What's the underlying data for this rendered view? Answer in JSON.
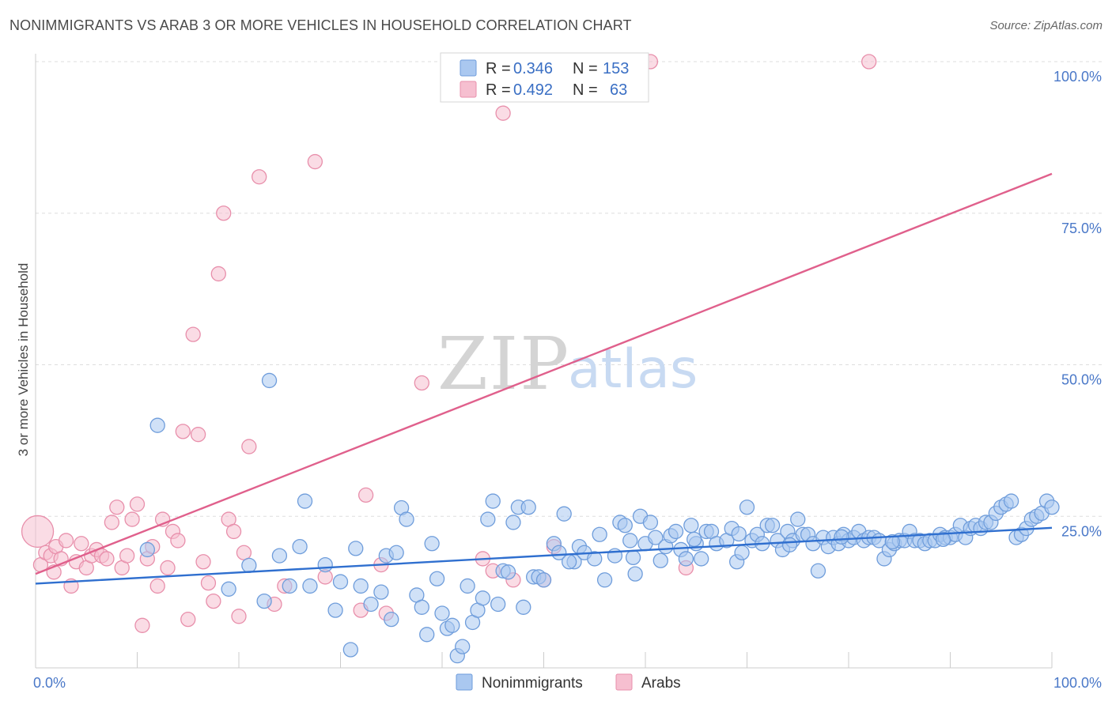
{
  "title": "NONIMMIGRANTS VS ARAB 3 OR MORE VEHICLES IN HOUSEHOLD CORRELATION CHART",
  "source": "Source: ZipAtlas.com",
  "watermark": {
    "zip": "ZIP",
    "atlas": "atlas"
  },
  "colors": {
    "blue_fill": "#aac8f0",
    "blue_stroke": "#6f9ddb",
    "blue_line": "#2f6fcf",
    "pink_fill": "#f6bfd0",
    "pink_stroke": "#e88fab",
    "pink_line": "#e0608c",
    "grid": "#dddddd",
    "tick_label": "#4a78c8"
  },
  "legend": {
    "rows": [
      {
        "r_label": "R =",
        "r_value": "0.346",
        "n_label": "N =",
        "n_value": "153"
      },
      {
        "r_label": "R =",
        "r_value": "0.492",
        "n_label": "N =",
        "n_value": "63"
      }
    ]
  },
  "chart_data": {
    "type": "scatter",
    "title": "NONIMMIGRANTS VS ARAB 3 OR MORE VEHICLES IN HOUSEHOLD CORRELATION CHART",
    "xlabel": "",
    "ylabel": "3 or more Vehicles in Household",
    "xlim": [
      0,
      100
    ],
    "ylim": [
      0,
      100
    ],
    "x_tick_labels": [
      "0.0%",
      "100.0%"
    ],
    "y_tick_labels": [
      {
        "value": 25,
        "label": "25.0%"
      },
      {
        "value": 50,
        "label": "50.0%"
      },
      {
        "value": 75,
        "label": "75.0%"
      },
      {
        "value": 100,
        "label": "100.0%"
      }
    ],
    "grid": true,
    "legend_position": "bottom-center",
    "series": [
      {
        "name": "Nonimmigrants",
        "color": "#aac8f0",
        "trend": {
          "x": [
            0,
            100
          ],
          "y": [
            13.9,
            23.1
          ]
        },
        "points": [
          [
            12,
            40
          ],
          [
            23,
            47.4
          ],
          [
            11,
            19.5
          ],
          [
            19,
            13
          ],
          [
            21,
            16.9
          ],
          [
            22.5,
            11
          ],
          [
            24,
            18.5
          ],
          [
            25,
            13.5
          ],
          [
            26,
            20
          ],
          [
            26.5,
            27.5
          ],
          [
            27,
            13.5
          ],
          [
            28.5,
            17
          ],
          [
            29.5,
            9.5
          ],
          [
            30,
            14.2
          ],
          [
            31,
            3
          ],
          [
            31.5,
            19.7
          ],
          [
            32,
            13.5
          ],
          [
            33,
            10.5
          ],
          [
            34,
            12.5
          ],
          [
            34.5,
            18.5
          ],
          [
            35,
            8
          ],
          [
            35.5,
            19
          ],
          [
            36,
            26.4
          ],
          [
            36.5,
            24.5
          ],
          [
            37.5,
            12
          ],
          [
            38,
            10
          ],
          [
            38.5,
            5.5
          ],
          [
            39,
            20.5
          ],
          [
            39.5,
            14.7
          ],
          [
            40,
            9
          ],
          [
            40.5,
            6.5
          ],
          [
            41,
            7
          ],
          [
            41.5,
            2
          ],
          [
            42,
            3.5
          ],
          [
            42.5,
            13.5
          ],
          [
            43,
            7.5
          ],
          [
            43.5,
            9.5
          ],
          [
            44,
            11.5
          ],
          [
            44.5,
            24.5
          ],
          [
            45,
            27.5
          ],
          [
            45.5,
            10.5
          ],
          [
            46,
            16
          ],
          [
            46.5,
            15.8
          ],
          [
            47,
            24
          ],
          [
            47.5,
            26.5
          ],
          [
            48,
            10
          ],
          [
            48.5,
            26.5
          ],
          [
            49,
            15
          ],
          [
            49.5,
            15
          ],
          [
            50,
            14.5
          ],
          [
            51,
            20.5
          ],
          [
            51.5,
            19
          ],
          [
            52,
            25.4
          ],
          [
            53,
            17.5
          ],
          [
            53.5,
            20
          ],
          [
            54,
            19
          ],
          [
            55,
            18
          ],
          [
            55.5,
            22
          ],
          [
            56,
            14.5
          ],
          [
            57,
            18.5
          ],
          [
            57.5,
            24
          ],
          [
            58,
            23.5
          ],
          [
            58.5,
            21
          ],
          [
            59,
            15.5
          ],
          [
            59.5,
            25
          ],
          [
            60,
            20.5
          ],
          [
            60.5,
            24
          ],
          [
            61,
            21.5
          ],
          [
            61.5,
            17.7
          ],
          [
            62,
            20
          ],
          [
            62.5,
            21.8
          ],
          [
            63,
            22.5
          ],
          [
            63.5,
            19.5
          ],
          [
            64,
            18
          ],
          [
            64.5,
            23.5
          ],
          [
            65,
            20.5
          ],
          [
            65.5,
            18
          ],
          [
            66,
            22.5
          ],
          [
            66.5,
            22.5
          ],
          [
            67,
            20.5
          ],
          [
            68,
            21
          ],
          [
            68.5,
            23
          ],
          [
            69,
            17.5
          ],
          [
            69.5,
            19
          ],
          [
            70,
            26.5
          ],
          [
            70.5,
            21
          ],
          [
            71,
            22
          ],
          [
            71.5,
            20.5
          ],
          [
            72,
            23.5
          ],
          [
            72.5,
            23.5
          ],
          [
            73,
            21
          ],
          [
            73.5,
            19.5
          ],
          [
            74,
            22.5
          ],
          [
            74.5,
            21
          ],
          [
            75,
            24.5
          ],
          [
            75.5,
            22
          ],
          [
            76,
            22
          ],
          [
            76.5,
            20.5
          ],
          [
            77,
            16
          ],
          [
            77.5,
            21.5
          ],
          [
            78,
            20
          ],
          [
            78.5,
            21.5
          ],
          [
            79,
            20.5
          ],
          [
            79.5,
            22
          ],
          [
            80,
            21
          ],
          [
            80.5,
            21.5
          ],
          [
            81,
            22.5
          ],
          [
            81.5,
            21
          ],
          [
            82,
            21.5
          ],
          [
            82.5,
            21.5
          ],
          [
            83,
            21
          ],
          [
            83.5,
            18
          ],
          [
            84,
            19.5
          ],
          [
            84.5,
            20.5
          ],
          [
            85,
            21
          ],
          [
            85.5,
            21
          ],
          [
            86,
            22.5
          ],
          [
            86.5,
            21
          ],
          [
            87,
            21
          ],
          [
            87.5,
            20.5
          ],
          [
            88,
            21
          ],
          [
            88.5,
            21
          ],
          [
            89,
            22
          ],
          [
            89.5,
            21.5
          ],
          [
            90,
            21.5
          ],
          [
            90.5,
            22
          ],
          [
            91,
            23.5
          ],
          [
            91.5,
            21.5
          ],
          [
            92,
            23
          ],
          [
            92.5,
            23.5
          ],
          [
            93,
            23
          ],
          [
            93.5,
            24
          ],
          [
            94,
            24
          ],
          [
            94.5,
            25.5
          ],
          [
            95,
            26.5
          ],
          [
            95.5,
            27
          ],
          [
            96,
            27.5
          ],
          [
            96.5,
            21.5
          ],
          [
            97,
            22
          ],
          [
            97.5,
            23
          ],
          [
            98,
            24.5
          ],
          [
            98.5,
            25
          ],
          [
            99,
            25.5
          ],
          [
            99.5,
            27.5
          ],
          [
            100,
            26.5
          ],
          [
            52.5,
            17.5
          ],
          [
            58.8,
            18.2
          ],
          [
            64.8,
            21.2
          ],
          [
            69.2,
            22.1
          ],
          [
            74.2,
            20.3
          ],
          [
            79.3,
            21.6
          ],
          [
            84.3,
            20.8
          ],
          [
            89.3,
            21.2
          ]
        ]
      },
      {
        "name": "Arabs",
        "color": "#f6bfd0",
        "trend": {
          "x": [
            0,
            100
          ],
          "y": [
            15.5,
            81.5
          ]
        },
        "points": [
          [
            0.2,
            22.5
          ],
          [
            0.5,
            17
          ],
          [
            1,
            19
          ],
          [
            1.5,
            18.5
          ],
          [
            2,
            20
          ],
          [
            2.5,
            18
          ],
          [
            3,
            21
          ],
          [
            3.5,
            13.5
          ],
          [
            4,
            17.5
          ],
          [
            4.5,
            20.5
          ],
          [
            5,
            16.5
          ],
          [
            5.5,
            18.5
          ],
          [
            6,
            19.5
          ],
          [
            6.5,
            18.5
          ],
          [
            7,
            18
          ],
          [
            7.5,
            24
          ],
          [
            8,
            26.5
          ],
          [
            8.5,
            16.5
          ],
          [
            9,
            18.5
          ],
          [
            9.5,
            24.5
          ],
          [
            10,
            27
          ],
          [
            10.5,
            7
          ],
          [
            11,
            18
          ],
          [
            11.5,
            20
          ],
          [
            12,
            13.5
          ],
          [
            12.5,
            24.5
          ],
          [
            13,
            16.5
          ],
          [
            13.5,
            22.5
          ],
          [
            14,
            21
          ],
          [
            14.5,
            39
          ],
          [
            15,
            8
          ],
          [
            15.5,
            55
          ],
          [
            16,
            38.5
          ],
          [
            16.5,
            17.5
          ],
          [
            17,
            14
          ],
          [
            17.5,
            11
          ],
          [
            18,
            65
          ],
          [
            18.5,
            75
          ],
          [
            19,
            24.5
          ],
          [
            19.5,
            22.5
          ],
          [
            20,
            8.5
          ],
          [
            20.5,
            19
          ],
          [
            21,
            36.5
          ],
          [
            22,
            81
          ],
          [
            23.5,
            10.5
          ],
          [
            24.5,
            13.5
          ],
          [
            27.5,
            83.5
          ],
          [
            28.5,
            15
          ],
          [
            32,
            9.5
          ],
          [
            32.5,
            28.5
          ],
          [
            34,
            17
          ],
          [
            34.5,
            9
          ],
          [
            38,
            47
          ],
          [
            44,
            18
          ],
          [
            45,
            16
          ],
          [
            46,
            91.5
          ],
          [
            47,
            14.5
          ],
          [
            50,
            14.5
          ],
          [
            51,
            20
          ],
          [
            60.5,
            100
          ],
          [
            64,
            16.5
          ],
          [
            82,
            100
          ],
          [
            1.8,
            15.8
          ]
        ]
      }
    ]
  },
  "bottom_legend": [
    {
      "label": "Nonimmigrants"
    },
    {
      "label": "Arabs"
    }
  ]
}
